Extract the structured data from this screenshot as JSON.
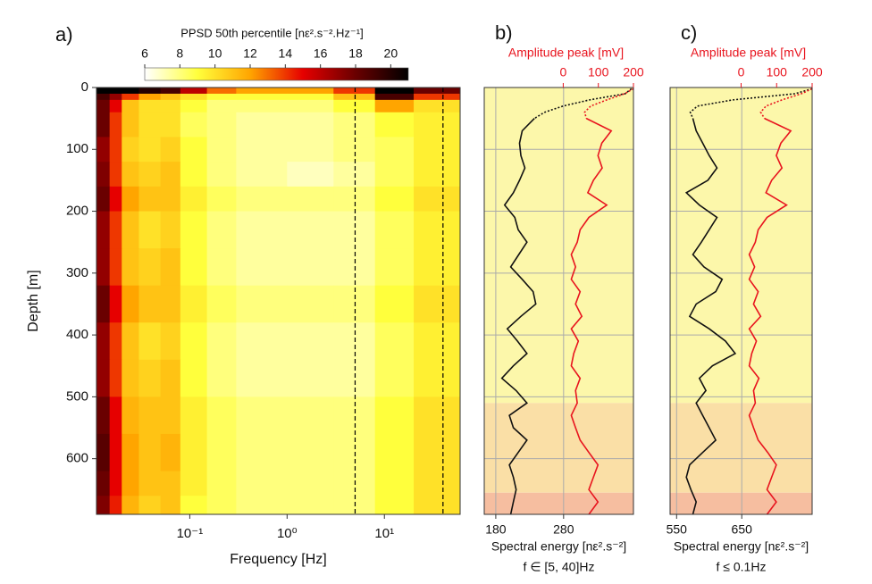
{
  "chart_data": [
    {
      "type": "heatmap",
      "label": "a)",
      "colorbar_label": "PPSD 50th percentile [nε².s⁻².Hz⁻¹]",
      "xlabel": "Frequency [Hz]",
      "ylabel": "Depth [m]",
      "xscale": "log",
      "xlim": [
        0.011,
        60
      ],
      "ylim": [
        690,
        0
      ],
      "xticks": [
        {
          "value": 0.1,
          "label": "10⁻¹"
        },
        {
          "value": 1,
          "label": "10⁰"
        },
        {
          "value": 10,
          "label": "10¹"
        }
      ],
      "yticks": [
        0,
        100,
        200,
        300,
        400,
        500,
        600
      ],
      "clim": [
        6,
        21
      ],
      "cticks": [
        6,
        8,
        10,
        12,
        14,
        16,
        18,
        20
      ],
      "colormap": [
        "#ffffff",
        "#ffff3c",
        "#ffa500",
        "#e60000",
        "#6a0000",
        "#000000"
      ],
      "vlines": [
        5,
        40
      ],
      "x_edges": [
        0.011,
        0.015,
        0.02,
        0.03,
        0.05,
        0.08,
        0.15,
        0.3,
        1,
        3,
        8,
        20,
        60
      ],
      "y_edges": [
        0,
        10,
        20,
        40,
        80,
        120,
        160,
        200,
        260,
        320,
        380,
        440,
        500,
        560,
        620,
        660,
        690
      ],
      "z": [
        [
          21,
          21,
          21,
          20,
          19,
          16,
          13,
          12,
          12,
          14,
          21,
          18
        ],
        [
          19,
          17,
          14,
          12,
          11,
          10,
          9,
          9,
          9,
          11,
          19,
          14
        ],
        [
          18,
          15,
          11,
          10,
          10,
          9,
          8,
          8,
          8,
          9,
          12,
          10
        ],
        [
          18,
          14,
          11,
          10,
          10,
          8.5,
          8,
          7.5,
          7.5,
          8,
          9,
          9.5
        ],
        [
          17,
          14,
          10.5,
          10,
          10.5,
          9,
          8,
          7.5,
          7.5,
          8,
          8.5,
          9.5
        ],
        [
          17.5,
          14,
          11,
          10.5,
          11,
          9,
          8,
          7.5,
          7,
          7.5,
          8.5,
          9.5
        ],
        [
          18,
          15,
          12,
          11,
          11,
          9.5,
          8.5,
          8,
          8,
          8,
          9,
          10
        ],
        [
          17,
          14,
          11,
          10,
          10.5,
          9,
          8,
          7.5,
          7.5,
          7.5,
          8.5,
          9.5
        ],
        [
          17,
          14,
          11,
          10.5,
          11,
          9,
          8,
          7.5,
          7.5,
          7.5,
          8.5,
          9.5
        ],
        [
          18,
          15,
          12,
          11,
          11,
          9.5,
          8.5,
          8,
          8,
          8,
          9,
          10
        ],
        [
          17,
          14,
          11,
          10,
          10.5,
          9,
          8,
          7.5,
          7.5,
          7.5,
          8.5,
          9.5
        ],
        [
          17,
          14,
          11,
          10.5,
          11,
          9,
          8,
          7.5,
          7.5,
          7.5,
          8.5,
          9.5
        ],
        [
          18,
          15,
          11.5,
          11,
          11,
          9.5,
          8.5,
          8,
          8,
          8,
          9,
          10
        ],
        [
          18.5,
          15,
          12,
          11,
          11.5,
          9.5,
          8.5,
          8,
          8,
          8,
          9,
          10
        ],
        [
          18,
          15,
          12,
          11,
          11,
          9.5,
          8.5,
          8,
          8,
          8,
          9,
          10
        ],
        [
          17.5,
          14.5,
          11.5,
          10.5,
          11,
          9,
          8.5,
          8,
          8,
          8,
          9,
          10
        ]
      ]
    },
    {
      "type": "profile",
      "label": "b)",
      "xlabel": "Spectral energy [nε².s⁻²]",
      "x2label": "Amplitude peak [mV]",
      "note": "f ∈ [5, 40]Hz",
      "xlim": [
        163,
        383
      ],
      "xticks": [
        180,
        280
      ],
      "x2lim": [
        -225,
        200
      ],
      "x2ticks": [
        0,
        100,
        200
      ],
      "ylim": [
        690,
        0
      ],
      "yticks": [
        100,
        200,
        300,
        400,
        500,
        600
      ],
      "grid": true,
      "zones": [
        {
          "from": 0,
          "to": 510,
          "color": "#fcf7aa"
        },
        {
          "from": 510,
          "to": 655,
          "color": "#fadfa6"
        },
        {
          "from": 655,
          "to": 690,
          "color": "#f6bea0"
        }
      ],
      "series": [
        {
          "color": "#111111",
          "style": "dotted",
          "axis": "x",
          "y": [
            2,
            10,
            20,
            30,
            40,
            50
          ],
          "values": [
            380,
            371,
            318,
            279,
            252,
            237
          ]
        },
        {
          "color": "#e8141e",
          "style": "dotted",
          "axis": "x2",
          "y": [
            2,
            10,
            20,
            30,
            40,
            50
          ],
          "values": [
            200,
            175,
            124,
            78,
            61,
            66
          ]
        },
        {
          "color": "#111111",
          "style": "solid",
          "axis": "x",
          "y": [
            50,
            70,
            90,
            110,
            130,
            150,
            170,
            190,
            210,
            230,
            250,
            270,
            290,
            310,
            330,
            350,
            370,
            390,
            410,
            430,
            450,
            470,
            490,
            510,
            530,
            550,
            570,
            590,
            610,
            630,
            650,
            670,
            690
          ],
          "values": [
            237,
            219,
            215,
            217,
            223,
            215,
            206,
            193,
            208,
            213,
            226,
            214,
            202,
            219,
            235,
            239,
            217,
            197,
            212,
            226,
            206,
            189,
            210,
            226,
            200,
            206,
            226,
            213,
            200,
            206,
            210,
            206,
            202
          ]
        },
        {
          "color": "#e8141e",
          "style": "solid",
          "axis": "x2",
          "y": [
            50,
            70,
            90,
            110,
            130,
            150,
            170,
            190,
            210,
            230,
            250,
            270,
            290,
            310,
            330,
            350,
            370,
            390,
            410,
            430,
            450,
            470,
            490,
            510,
            530,
            550,
            570,
            590,
            610,
            630,
            650,
            670,
            690
          ],
          "values": [
            66,
            137,
            110,
            99,
            111,
            86,
            70,
            124,
            73,
            48,
            40,
            23,
            35,
            23,
            48,
            35,
            53,
            23,
            43,
            30,
            23,
            48,
            35,
            40,
            23,
            35,
            48,
            73,
            99,
            86,
            73,
            99,
            73
          ]
        }
      ]
    },
    {
      "type": "profile",
      "label": "c)",
      "xlabel": "Spectral energy [nε².s⁻²]",
      "x2label": "Amplitude peak [mV]",
      "note": "f ≤ 0.1Hz",
      "xlim": [
        540,
        758
      ],
      "xticks": [
        550,
        650
      ],
      "x2lim": [
        -200,
        200
      ],
      "x2ticks": [
        0,
        100,
        200
      ],
      "ylim": [
        690,
        0
      ],
      "yticks": [
        100,
        200,
        300,
        400,
        500,
        600
      ],
      "grid": true,
      "zones": [
        {
          "from": 0,
          "to": 510,
          "color": "#fcf7aa"
        },
        {
          "from": 510,
          "to": 655,
          "color": "#fadfa6"
        },
        {
          "from": 655,
          "to": 690,
          "color": "#f6bea0"
        }
      ],
      "series": [
        {
          "color": "#111111",
          "style": "dotted",
          "axis": "x",
          "y": [
            2,
            10,
            20,
            30,
            40,
            50
          ],
          "values": [
            758,
            732,
            636,
            582,
            571,
            575
          ]
        },
        {
          "color": "#e8141e",
          "style": "dotted",
          "axis": "x2",
          "y": [
            2,
            10,
            20,
            30,
            40,
            50
          ],
          "values": [
            200,
            170,
            115,
            70,
            55,
            66
          ]
        },
        {
          "color": "#111111",
          "style": "solid",
          "axis": "x",
          "y": [
            50,
            70,
            90,
            110,
            130,
            150,
            170,
            190,
            210,
            230,
            250,
            270,
            290,
            310,
            330,
            350,
            370,
            390,
            410,
            430,
            450,
            470,
            490,
            510,
            530,
            550,
            570,
            590,
            610,
            630,
            650,
            670,
            690
          ],
          "values": [
            575,
            580,
            590,
            600,
            612,
            598,
            565,
            585,
            612,
            600,
            588,
            575,
            592,
            620,
            610,
            580,
            570,
            600,
            625,
            640,
            605,
            585,
            595,
            580,
            590,
            600,
            610,
            590,
            570,
            565,
            572,
            580,
            575
          ]
        },
        {
          "color": "#e8141e",
          "style": "solid",
          "axis": "x2",
          "y": [
            50,
            70,
            90,
            110,
            130,
            150,
            170,
            190,
            210,
            230,
            250,
            270,
            290,
            310,
            330,
            350,
            370,
            390,
            410,
            430,
            450,
            470,
            490,
            510,
            530,
            550,
            570,
            590,
            610,
            630,
            650,
            670,
            690
          ],
          "values": [
            66,
            140,
            112,
            99,
            115,
            86,
            70,
            128,
            73,
            48,
            40,
            23,
            38,
            23,
            48,
            35,
            55,
            23,
            43,
            30,
            23,
            50,
            35,
            40,
            23,
            35,
            48,
            75,
            99,
            86,
            73,
            99,
            73
          ]
        }
      ]
    }
  ]
}
